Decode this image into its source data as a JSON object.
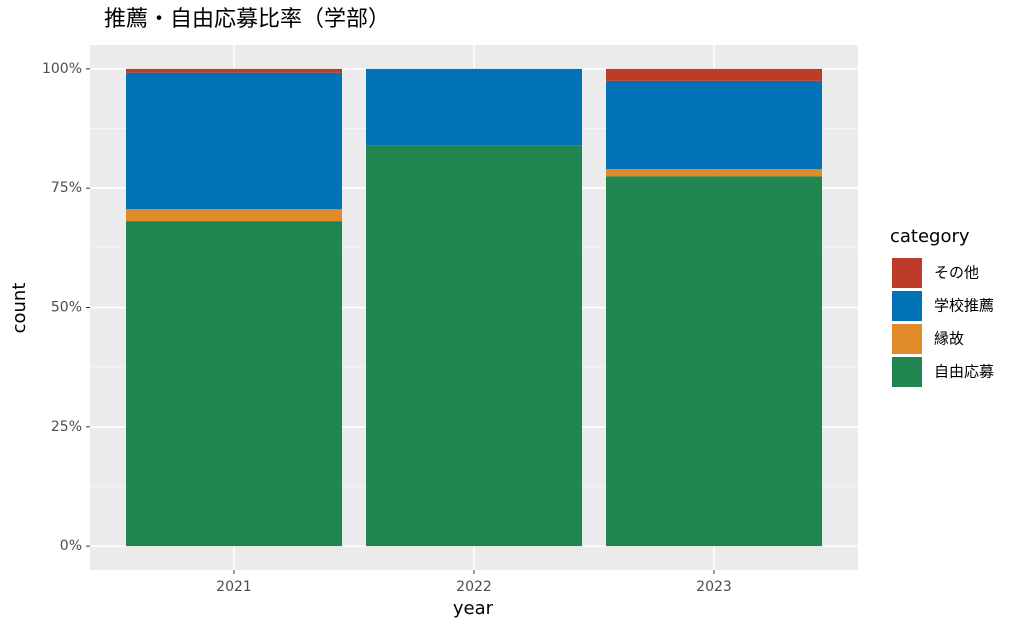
{
  "chart_data": {
    "type": "stacked_bar",
    "title": "推薦・自由応募比率（学部）",
    "x_label": "year",
    "y_label": "count",
    "legend_title": "category",
    "categories": [
      "2021",
      "2022",
      "2023"
    ],
    "series": [
      {
        "name": "自由応募",
        "color": "#21854f",
        "values": [
          68.1,
          84.0,
          77.5
        ]
      },
      {
        "name": "縁故",
        "color": "#e08a2a",
        "values": [
          2.5,
          0,
          1.5
        ]
      },
      {
        "name": "学校推薦",
        "color": "#0072b5",
        "values": [
          28.6,
          16.0,
          18.5
        ]
      },
      {
        "name": "その他",
        "color": "#bc3c29",
        "values": [
          0.8,
          0,
          2.5
        ]
      }
    ],
    "ylim": [
      -5,
      105
    ],
    "yticks": [
      {
        "value": 0,
        "label": "0%"
      },
      {
        "value": 25,
        "label": "25%"
      },
      {
        "value": 50,
        "label": "50%"
      },
      {
        "value": 75,
        "label": "75%"
      },
      {
        "value": 100,
        "label": "100%"
      }
    ],
    "yminor": [
      12.5,
      37.5,
      62.5,
      87.5
    ],
    "grid": true,
    "legend": "right"
  }
}
